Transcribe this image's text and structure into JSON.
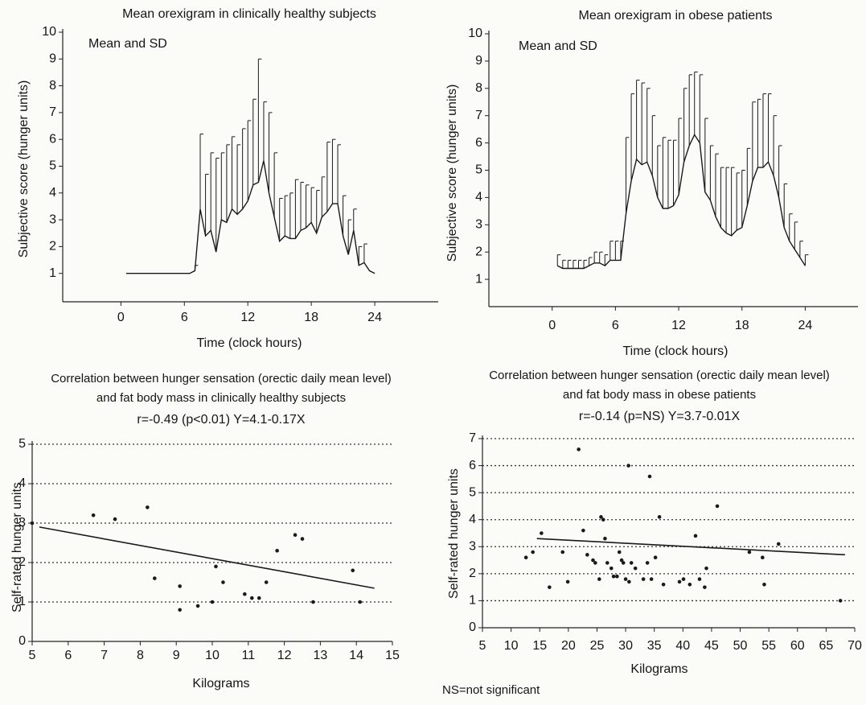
{
  "chart_data": [
    {
      "type": "line",
      "title": "Mean orexigram in clinically healthy subjects",
      "annotation": "Mean and SD",
      "x_label": "Time (clock hours)",
      "y_label": "Subjective score (hunger units)",
      "x": [
        0.5,
        1,
        1.5,
        2,
        2.5,
        3,
        3.5,
        4,
        4.5,
        5,
        5.5,
        6,
        6.5,
        7,
        7.5,
        8,
        8.5,
        9,
        9.5,
        10,
        10.5,
        11,
        11.5,
        12,
        12.5,
        13,
        13.5,
        14,
        14.5,
        15,
        15.5,
        16,
        16.5,
        17,
        17.5,
        18,
        18.5,
        19,
        19.5,
        20,
        20.5,
        21,
        21.5,
        22,
        22.5,
        23,
        23.5,
        24
      ],
      "values": [
        1,
        1,
        1,
        1,
        1,
        1,
        1,
        1,
        1,
        1,
        1,
        1,
        1,
        1.1,
        3.4,
        2.4,
        2.6,
        1.8,
        3.0,
        2.9,
        3.4,
        3.2,
        3.4,
        3.7,
        4.3,
        4.4,
        5.2,
        4.0,
        3.1,
        2.2,
        2.4,
        2.3,
        2.3,
        2.6,
        2.7,
        2.9,
        2.5,
        3.1,
        3.3,
        3.6,
        3.6,
        2.4,
        1.7,
        2.6,
        1.3,
        1.4,
        1.1,
        1.0
      ],
      "errors": [
        0,
        0,
        0,
        0,
        0,
        0,
        0,
        0,
        0,
        0,
        0,
        0,
        0,
        0.2,
        2.8,
        2.3,
        2.9,
        3.5,
        2.5,
        2.9,
        2.7,
        2.6,
        3.0,
        3.0,
        3.2,
        4.6,
        2.2,
        3.0,
        2.4,
        1.6,
        1.5,
        1.7,
        2.2,
        1.8,
        1.6,
        1.3,
        1.6,
        1.5,
        2.6,
        2.4,
        2.2,
        1.5,
        1.3,
        0.8,
        0.7,
        0.7,
        0,
        0
      ],
      "color": "#1a1a1a",
      "xlim": [
        -5.5,
        30
      ],
      "xticks": [
        0,
        6,
        12,
        18,
        24
      ],
      "ylim": [
        0,
        10
      ],
      "yticks": [
        1,
        2,
        3,
        4,
        5,
        6,
        7,
        8,
        9,
        10
      ]
    },
    {
      "type": "line",
      "title": "Mean orexigram in obese patients",
      "annotation": "Mean and SD",
      "x_label": "Time (clock hours)",
      "y_label": "Subjective score (hunger units)",
      "x": [
        0.5,
        1,
        1.5,
        2,
        2.5,
        3,
        3.5,
        4,
        4.5,
        5,
        5.5,
        6,
        6.5,
        7,
        7.5,
        8,
        8.5,
        9,
        9.5,
        10,
        10.5,
        11,
        11.5,
        12,
        12.5,
        13,
        13.5,
        14,
        14.5,
        15,
        15.5,
        16,
        16.5,
        17,
        17.5,
        18,
        18.5,
        19,
        19.5,
        20,
        20.5,
        21,
        21.5,
        22,
        22.5,
        23,
        23.5,
        24
      ],
      "values": [
        1.5,
        1.4,
        1.4,
        1.4,
        1.4,
        1.4,
        1.5,
        1.6,
        1.6,
        1.5,
        1.7,
        1.7,
        1.7,
        3.4,
        4.6,
        5.4,
        5.2,
        5.3,
        4.8,
        4.0,
        3.6,
        3.6,
        3.7,
        4.1,
        5.3,
        5.9,
        6.3,
        6.0,
        4.2,
        3.9,
        3.3,
        2.9,
        2.7,
        2.6,
        2.8,
        2.9,
        3.7,
        4.6,
        5.1,
        5.1,
        5.3,
        4.8,
        4.0,
        2.9,
        2.4,
        2.1,
        1.8,
        1.5
      ],
      "errors": [
        0.4,
        0.3,
        0.3,
        0.3,
        0.3,
        0.3,
        0.3,
        0.4,
        0.4,
        0.4,
        0.7,
        0.7,
        0.7,
        2.8,
        3.2,
        2.9,
        3.0,
        2.7,
        2.2,
        1.9,
        2.6,
        2.5,
        2.4,
        2.8,
        2.7,
        2.6,
        2.3,
        2.5,
        2.7,
        2.0,
        2.3,
        2.2,
        2.4,
        2.5,
        2.1,
        2.1,
        2.1,
        2.9,
        2.5,
        2.7,
        2.5,
        2.2,
        1.9,
        1.6,
        1.0,
        1.0,
        0.6,
        0.4
      ],
      "color": "#1a1a1a",
      "xlim": [
        -6,
        29
      ],
      "xticks": [
        0,
        6,
        12,
        18,
        24
      ],
      "ylim": [
        0,
        10
      ],
      "yticks": [
        1,
        2,
        3,
        4,
        5,
        6,
        7,
        8,
        9,
        10
      ]
    },
    {
      "type": "scatter",
      "title": [
        "Correlation between hunger sensation (orectic daily mean level)",
        "and fat body mass in clinically healthy subjects"
      ],
      "subtitle": "r=-0.49 (p<0.01) Y=4.1-0.17X",
      "x_label": "Kilograms",
      "y_label": "Self-rated hunger units",
      "x": [
        5.0,
        6.7,
        7.3,
        8.2,
        8.4,
        9.1,
        9.1,
        9.6,
        10.0,
        10.1,
        10.3,
        10.9,
        11.1,
        11.3,
        11.5,
        11.8,
        12.3,
        12.5,
        12.8,
        13.9,
        14.1
      ],
      "values": [
        3.0,
        3.2,
        3.1,
        3.4,
        1.6,
        1.4,
        0.8,
        0.9,
        1.0,
        1.9,
        1.5,
        1.2,
        1.1,
        1.1,
        1.5,
        2.3,
        2.7,
        2.6,
        1.0,
        1.8,
        1.0
      ],
      "fit_line": {
        "x": [
          5.2,
          14.5
        ],
        "y": [
          2.9,
          1.35
        ]
      },
      "color": "#1a1a1a",
      "grid": true,
      "xlim": [
        5,
        15
      ],
      "xticks": [
        5,
        6,
        7,
        8,
        9,
        10,
        11,
        12,
        13,
        14,
        15
      ],
      "ylim": [
        0,
        5
      ],
      "yticks": [
        0,
        1,
        2,
        3,
        4,
        5
      ]
    },
    {
      "type": "scatter",
      "title": [
        "Correlation between hunger sensation (orectic daily mean level)",
        "and fat body mass in obese patients"
      ],
      "subtitle": "r=-0.14 (p=NS) Y=3.7-0.01X",
      "x_label": "Kilograms",
      "y_label": "Self-rated hunger units",
      "x": [
        12.6,
        13.8,
        15.3,
        16.7,
        19.0,
        19.9,
        21.8,
        22.6,
        23.3,
        24.3,
        24.7,
        25.4,
        25.7,
        26.1,
        26.4,
        26.8,
        27.5,
        27.9,
        28.5,
        28.9,
        29.3,
        29.6,
        30.0,
        30.6,
        31.0,
        31.7,
        33.1,
        33.8,
        34.5,
        35.2,
        35.9,
        36.6,
        39.4,
        40.1,
        41.2,
        42.2,
        42.9,
        43.8,
        44.1,
        46.0,
        51.6,
        53.9,
        54.2,
        56.7,
        67.5,
        30.5,
        34.2
      ],
      "values": [
        2.6,
        2.8,
        3.5,
        1.5,
        2.8,
        1.7,
        6.6,
        3.6,
        2.7,
        2.5,
        2.4,
        1.8,
        4.1,
        4.0,
        3.3,
        2.4,
        2.2,
        1.9,
        1.9,
        2.8,
        2.5,
        2.4,
        1.8,
        1.7,
        2.4,
        2.2,
        1.8,
        2.4,
        1.8,
        2.6,
        4.1,
        1.6,
        1.7,
        1.8,
        1.6,
        3.4,
        1.8,
        1.5,
        2.2,
        4.5,
        2.8,
        2.6,
        1.6,
        3.1,
        1.0,
        6.0,
        5.6
      ],
      "fit_line": {
        "x": [
          14.5,
          68.3
        ],
        "y": [
          3.3,
          2.7
        ]
      },
      "color": "#1a1a1a",
      "grid": true,
      "xlim": [
        5,
        70
      ],
      "xticks": [
        5,
        10,
        15,
        20,
        25,
        30,
        35,
        40,
        45,
        50,
        55,
        60,
        65,
        70
      ],
      "ylim": [
        0,
        7
      ],
      "yticks": [
        0,
        1,
        2,
        3,
        4,
        5,
        6,
        7
      ]
    }
  ],
  "footnote": "NS=not significant"
}
